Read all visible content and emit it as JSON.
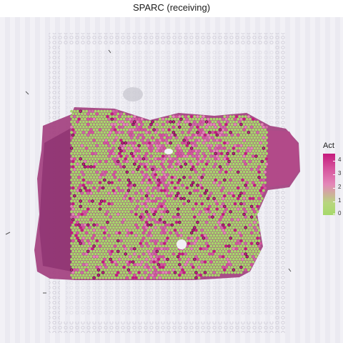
{
  "title": "SPARC (receiving)",
  "legend": {
    "title": "Act",
    "ticks": [
      "4",
      "3",
      "2",
      "1",
      "0"
    ],
    "colors": {
      "high": "#c51b7d",
      "mid": "#e487b8",
      "low": "#a6d96a"
    }
  },
  "image": {
    "description_icon": "tissue-section-image",
    "tissue_color": "#a3407f",
    "spot_low_color": "#a6d96a",
    "spot_high_color": "#c51b7d"
  }
}
